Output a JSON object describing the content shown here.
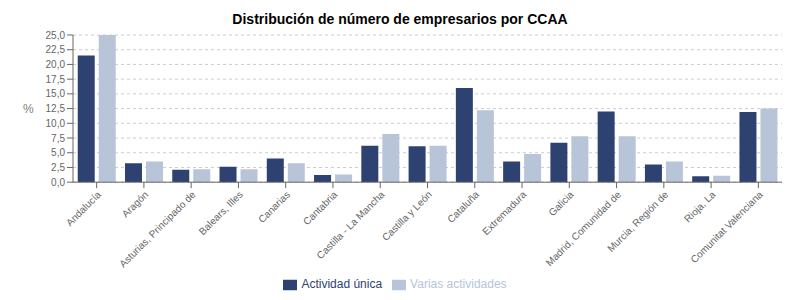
{
  "chart_data": {
    "type": "bar",
    "title": "Distribución de número de empresarios por CCAA",
    "ylabel": "%",
    "categories": [
      "Andalucía",
      "Aragón",
      "Asturias, Principado de",
      "Balears, Illes",
      "Canarias",
      "Cantabria",
      "Castilla - La Mancha",
      "Castilla y León",
      "Cataluña",
      "Extremadura",
      "Galicia",
      "Madrid, Comunidad de",
      "Murcia, Región de",
      "Rioja, La",
      "Comunitat Valenciana"
    ],
    "series": [
      {
        "name": "Actividad única",
        "color": "#2E4272",
        "values": [
          21.5,
          3.2,
          2.1,
          2.6,
          4.0,
          1.2,
          6.2,
          6.1,
          16.0,
          3.5,
          6.7,
          12.0,
          3.0,
          1.0,
          11.9
        ]
      },
      {
        "name": "Varias actividades",
        "color": "#B8C4D8",
        "values": [
          25.0,
          3.5,
          2.2,
          2.2,
          3.2,
          1.3,
          8.2,
          6.2,
          12.2,
          4.8,
          7.8,
          7.8,
          3.5,
          1.1,
          12.5
        ]
      }
    ],
    "ylim": [
      0,
      25
    ],
    "yticks": [
      {
        "value": 0,
        "label": "0,0"
      },
      {
        "value": 2.5,
        "label": "2,5"
      },
      {
        "value": 5,
        "label": "5,0"
      },
      {
        "value": 7.5,
        "label": "7,5"
      },
      {
        "value": 10,
        "label": "10,0"
      },
      {
        "value": 12.5,
        "label": "12,5"
      },
      {
        "value": 15,
        "label": "15,0"
      },
      {
        "value": 17.5,
        "label": "17,5"
      },
      {
        "value": 20,
        "label": "20,0"
      },
      {
        "value": 22.5,
        "label": "22,5"
      },
      {
        "value": 25,
        "label": "25,0"
      }
    ],
    "grid": true,
    "legend": "bottom"
  }
}
